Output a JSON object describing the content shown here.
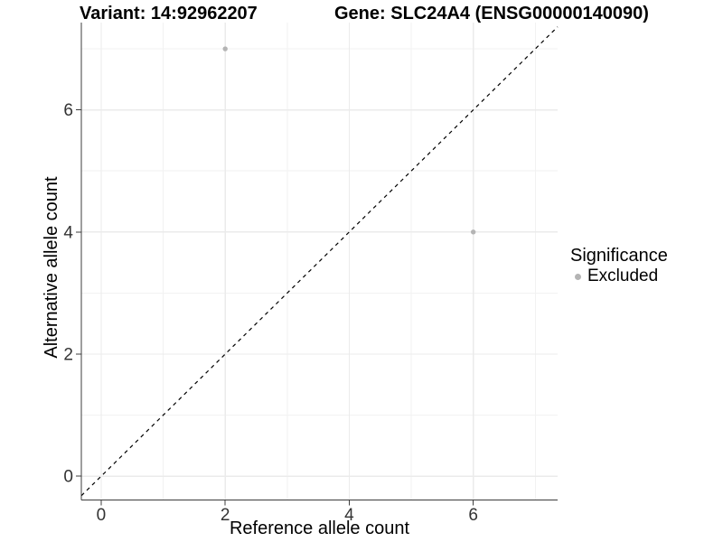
{
  "chart_data": {
    "type": "scatter",
    "title_variant": "Variant: 14:92962207",
    "title_gene": "Gene: SLC24A4 (ENSG00000140090)",
    "xlabel": "Reference allele count",
    "ylabel": "Alternative allele count",
    "xlim": [
      -0.32,
      7.36
    ],
    "ylim": [
      -0.39,
      7.43
    ],
    "x_major_ticks": [
      0,
      2,
      4,
      6
    ],
    "y_major_ticks": [
      0,
      2,
      4,
      6
    ],
    "x_minor_gridlines": [
      1,
      3,
      5,
      7
    ],
    "y_minor_gridlines": [
      1,
      3,
      5,
      7
    ],
    "grid": "major and minor gridlines on white panel",
    "identity_line": {
      "equation": "y = x",
      "style": "dashed",
      "color": "#000000"
    },
    "series": [
      {
        "name": "Excluded",
        "color": "#b4b4b4",
        "points": [
          {
            "x": 2,
            "y": 7
          },
          {
            "x": 6,
            "y": 4
          }
        ]
      }
    ],
    "legend": {
      "title": "Significance",
      "position": "right",
      "entries": [
        {
          "label": "Excluded",
          "color": "#b4b4b4",
          "marker": "circle"
        }
      ]
    },
    "colors": {
      "background": "#ffffff",
      "grid_major": "#ebebeb",
      "grid_minor": "#f2f2f2",
      "axis_line": "#3c3c3c",
      "tick_mark": "#3c3c3c",
      "tick_label": "#333333",
      "point": "#b4b4b4",
      "title_text": "#000000"
    }
  }
}
